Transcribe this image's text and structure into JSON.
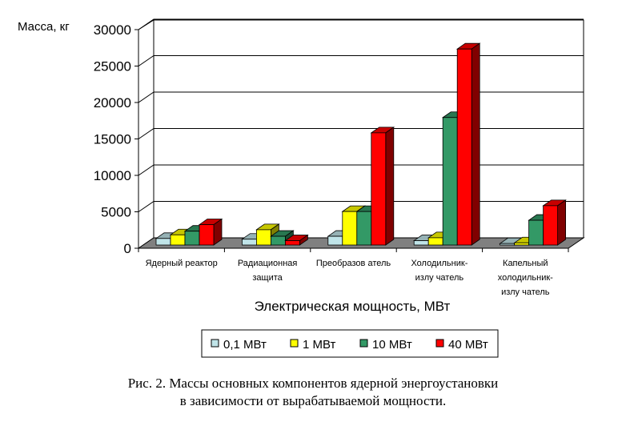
{
  "chart_data": {
    "type": "bar",
    "style": "3d-clustered",
    "ylabel": "Масса, кг",
    "xlabel": "Электрическая мощность, МВт",
    "ylim": [
      0,
      30000
    ],
    "yticks": [
      0,
      5000,
      10000,
      15000,
      20000,
      25000,
      30000
    ],
    "grid": true,
    "legend_position": "bottom",
    "categories": [
      [
        "Ядерный реактор"
      ],
      [
        "Радиационная",
        "защита"
      ],
      [
        "Преобразов атель"
      ],
      [
        "Холодильник-",
        "излу чатель"
      ],
      [
        "Капельный",
        "холодильник-",
        "излу чатель"
      ]
    ],
    "series": [
      {
        "name": "0,1 МВт",
        "color": "#c0e4e8",
        "values": [
          900,
          800,
          1200,
          600,
          200
        ]
      },
      {
        "name": "1 МВт",
        "color": "#ffff00",
        "values": [
          1400,
          2100,
          4600,
          1000,
          300
        ]
      },
      {
        "name": "10 МВт",
        "color": "#339966",
        "values": [
          1900,
          1200,
          4600,
          17500,
          3400
        ]
      },
      {
        "name": "40 МВт",
        "color": "#ff0000",
        "values": [
          2800,
          600,
          15400,
          26900,
          5400
        ]
      }
    ]
  },
  "caption": {
    "line1": "Рис. 2. Массы основных компонентов ядерной энергоустановки",
    "line2": "в зависимости от вырабатываемой мощности."
  }
}
